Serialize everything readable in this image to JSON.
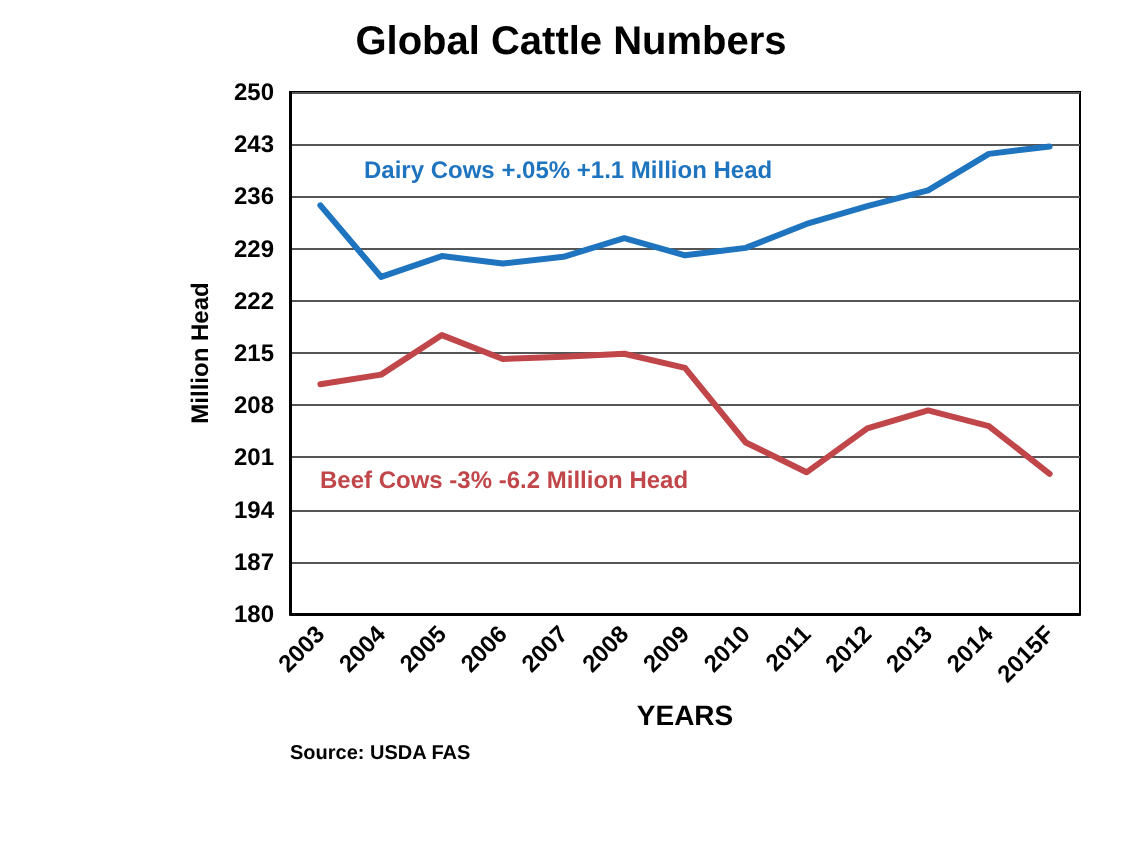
{
  "chart_data": {
    "type": "line",
    "title": "Global Cattle Numbers",
    "xlabel": "YEARS",
    "ylabel": "Million Head",
    "categories": [
      "2003",
      "2004",
      "2005",
      "2006",
      "2007",
      "2008",
      "2009",
      "2010",
      "2011",
      "2012",
      "2013",
      "2014",
      "2015F"
    ],
    "series": [
      {
        "name": "Dairy Cows +.05% +1.1 Million Head",
        "color": "#1f74bf",
        "values": [
          234.8,
          225.2,
          228.0,
          227.0,
          227.9,
          230.4,
          228.1,
          229.1,
          232.3,
          234.7,
          236.8,
          241.7,
          242.7
        ]
      },
      {
        "name": "Beef Cows -3% -6.2 Million Head",
        "color": "#c0464a",
        "values": [
          210.8,
          212.1,
          217.4,
          214.2,
          214.5,
          214.9,
          213.0,
          203.0,
          199.0,
          204.9,
          207.3,
          205.2,
          198.8
        ]
      }
    ],
    "ylim": [
      180,
      250
    ],
    "yticks": [
      180,
      187,
      194,
      201,
      208,
      215,
      222,
      229,
      236,
      243,
      250
    ],
    "grid": "y",
    "legend": false,
    "marker": "none",
    "line_style": "solid",
    "annotations": [
      "Source: USDA FAS"
    ]
  }
}
